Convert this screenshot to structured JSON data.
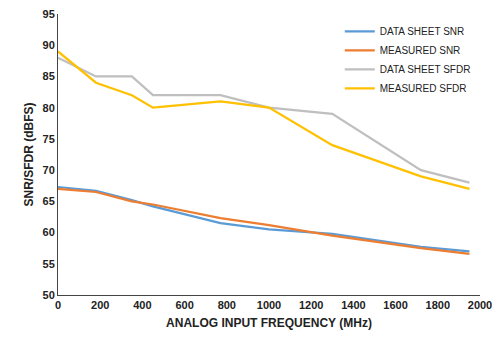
{
  "chart_data": {
    "type": "line",
    "x_label": "ANALOG INPUT FREQUENCY (MHz)",
    "y_label": "SNR/SFDR (dBFS)",
    "x": [
      0,
      180,
      350,
      450,
      770,
      1000,
      1300,
      1720,
      1950
    ],
    "series": [
      {
        "name": "DATA SHEET SNR",
        "color": "#5b9bd5",
        "values": [
          67.3,
          66.7,
          65.2,
          64.2,
          61.5,
          60.5,
          59.8,
          57.7,
          57.0
        ]
      },
      {
        "name": "MEASURED SNR",
        "color": "#ed7d31",
        "values": [
          67.0,
          66.5,
          65.0,
          64.5,
          62.3,
          61.2,
          59.5,
          57.5,
          56.6
        ]
      },
      {
        "name": "DATA SHEET SFDR",
        "color": "#bfbfbf",
        "values": [
          88.0,
          85.0,
          85.0,
          82.0,
          82.0,
          80.0,
          79.0,
          70.0,
          68.0
        ]
      },
      {
        "name": "MEASURED SFDR",
        "color": "#ffc000",
        "values": [
          89.0,
          84.0,
          82.0,
          80.0,
          81.0,
          80.0,
          74.0,
          69.0,
          67.0
        ]
      }
    ],
    "xlim": [
      0,
      2000
    ],
    "xticks": [
      0,
      200,
      400,
      600,
      800,
      1000,
      1200,
      1400,
      1600,
      1800,
      2000
    ],
    "ylim": [
      50,
      95
    ],
    "yticks": [
      50,
      55,
      60,
      65,
      70,
      75,
      80,
      85,
      90,
      95
    ],
    "grid": false,
    "legend": "top-right"
  }
}
